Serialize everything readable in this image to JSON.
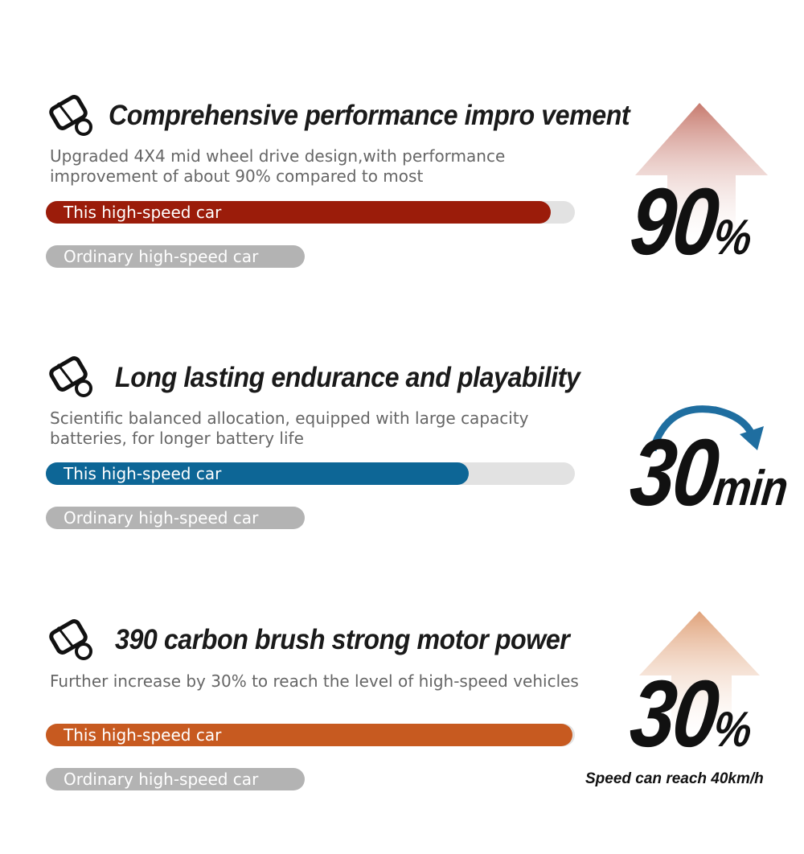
{
  "sections": [
    {
      "title": "Comprehensive performance impro vement",
      "description": [
        "Upgraded 4X4 mid wheel drive design,with performance",
        "improvement of about 90% compared to most"
      ],
      "bar_label": "This high-speed car",
      "ordinary_label": "Ordinary high-speed car",
      "big_value": "90",
      "unit": "%"
    },
    {
      "title": "Long lasting endurance and playability",
      "description": [
        "Scientific balanced allocation, equipped with large capacity",
        "batteries, for longer battery life"
      ],
      "bar_label": "This high-speed car",
      "ordinary_label": "Ordinary high-speed car",
      "big_value": "30",
      "unit": "min"
    },
    {
      "title": "390 carbon brush strong motor power",
      "description": [
        "Further increase by 30% to reach the level of high-speed vehicles"
      ],
      "bar_label": "This high-speed car",
      "ordinary_label": "Ordinary high-speed car",
      "big_value": "30",
      "unit": "%",
      "caption": "Speed can reach 40km/h"
    }
  ]
}
